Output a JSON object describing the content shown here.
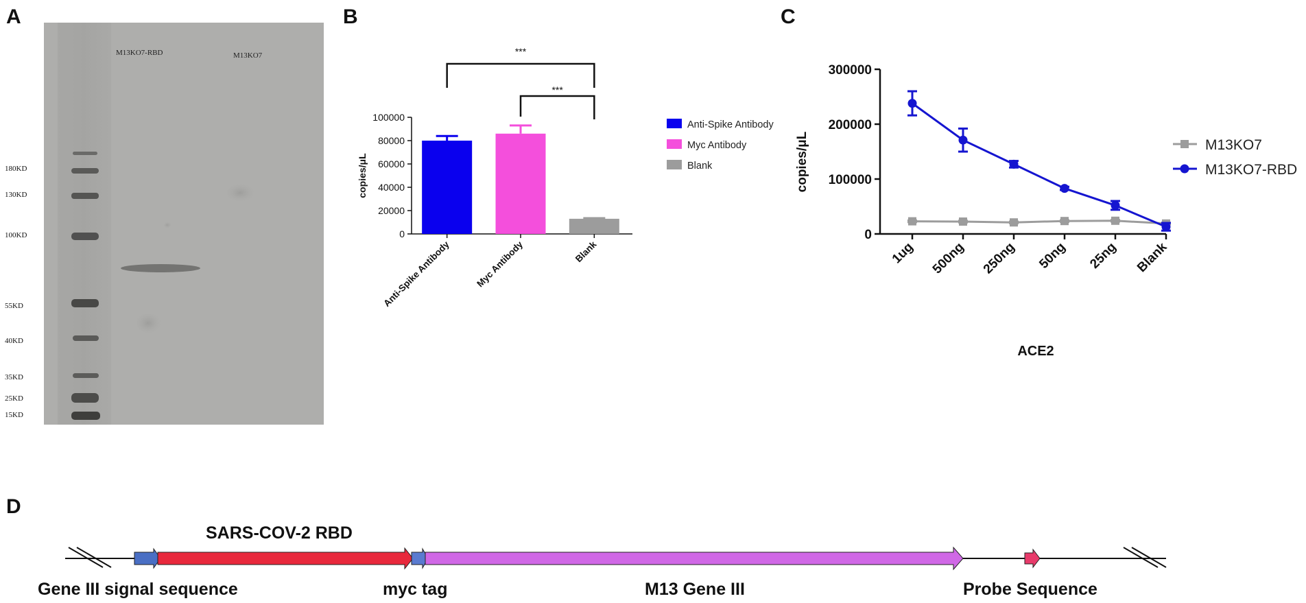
{
  "panels": {
    "a": "A",
    "b": "B",
    "c": "C",
    "d": "D"
  },
  "blot": {
    "lane_labels": [
      "M13KO7-RBD",
      "M13KO7"
    ],
    "markers": [
      "180KD",
      "130KD",
      "100KD",
      "55KD",
      "40KD",
      "35KD",
      "25KD",
      "15KD"
    ]
  },
  "chart_data": [
    {
      "type": "bar",
      "title": "",
      "xlabel": "",
      "ylabel": "copies/μL",
      "ylim": [
        0,
        100000
      ],
      "yticks": [
        0,
        20000,
        40000,
        60000,
        80000,
        100000
      ],
      "ytick_labels": [
        "0",
        "20000",
        "40000",
        "60000",
        "80000",
        "100000"
      ],
      "categories": [
        "Anti-Spike Antibody",
        "Myc Antibody",
        "Blank"
      ],
      "values": [
        80000,
        86000,
        13000
      ],
      "errors": [
        4000,
        7000,
        500
      ],
      "colors": [
        "#0a00ee",
        "#f44fdc",
        "#9c9c9c"
      ],
      "legend": [
        "Anti-Spike Antibody",
        "Myc Antibody",
        "Blank"
      ],
      "significance": [
        {
          "from": "Anti-Spike Antibody",
          "to": "Blank",
          "label": "***"
        },
        {
          "from": "Myc Antibody",
          "to": "Blank",
          "label": "***"
        }
      ]
    },
    {
      "type": "line",
      "title": "",
      "xlabel": "ACE2",
      "ylabel": "copies/μL",
      "ylim": [
        0,
        300000
      ],
      "yticks": [
        0,
        100000,
        200000,
        300000
      ],
      "ytick_labels": [
        "0",
        "100000",
        "200000",
        "300000"
      ],
      "categories": [
        "1ug",
        "500ng",
        "250ng",
        "50ng",
        "25ng",
        "Blank"
      ],
      "series": [
        {
          "name": "M13KO7",
          "color": "#9c9c9c",
          "marker": "square",
          "values": [
            23000,
            22500,
            21000,
            23500,
            24000,
            19000
          ],
          "errors": [
            1500,
            1500,
            1500,
            1500,
            1500,
            1500
          ]
        },
        {
          "name": "M13KO7-RBD",
          "color": "#1515d0",
          "marker": "circle",
          "values": [
            238000,
            171000,
            127000,
            83000,
            52000,
            13000
          ],
          "errors": [
            22000,
            21000,
            6000,
            3000,
            8000,
            7000
          ]
        }
      ],
      "legend": [
        "M13KO7",
        "M13KO7-RBD"
      ]
    }
  ],
  "construct": {
    "labels": {
      "rbd": "SARS-COV-2 RBD",
      "signal": "Gene III signal sequence",
      "myc": "myc tag",
      "gene3": "M13 Gene III",
      "probe": "Probe Sequence"
    },
    "colors": {
      "signal": "#4a6fc4",
      "rbd": "#e8283c",
      "myc": "#5a7bd0",
      "gene3": "#d068e6",
      "probe": "#e83a6a"
    }
  }
}
